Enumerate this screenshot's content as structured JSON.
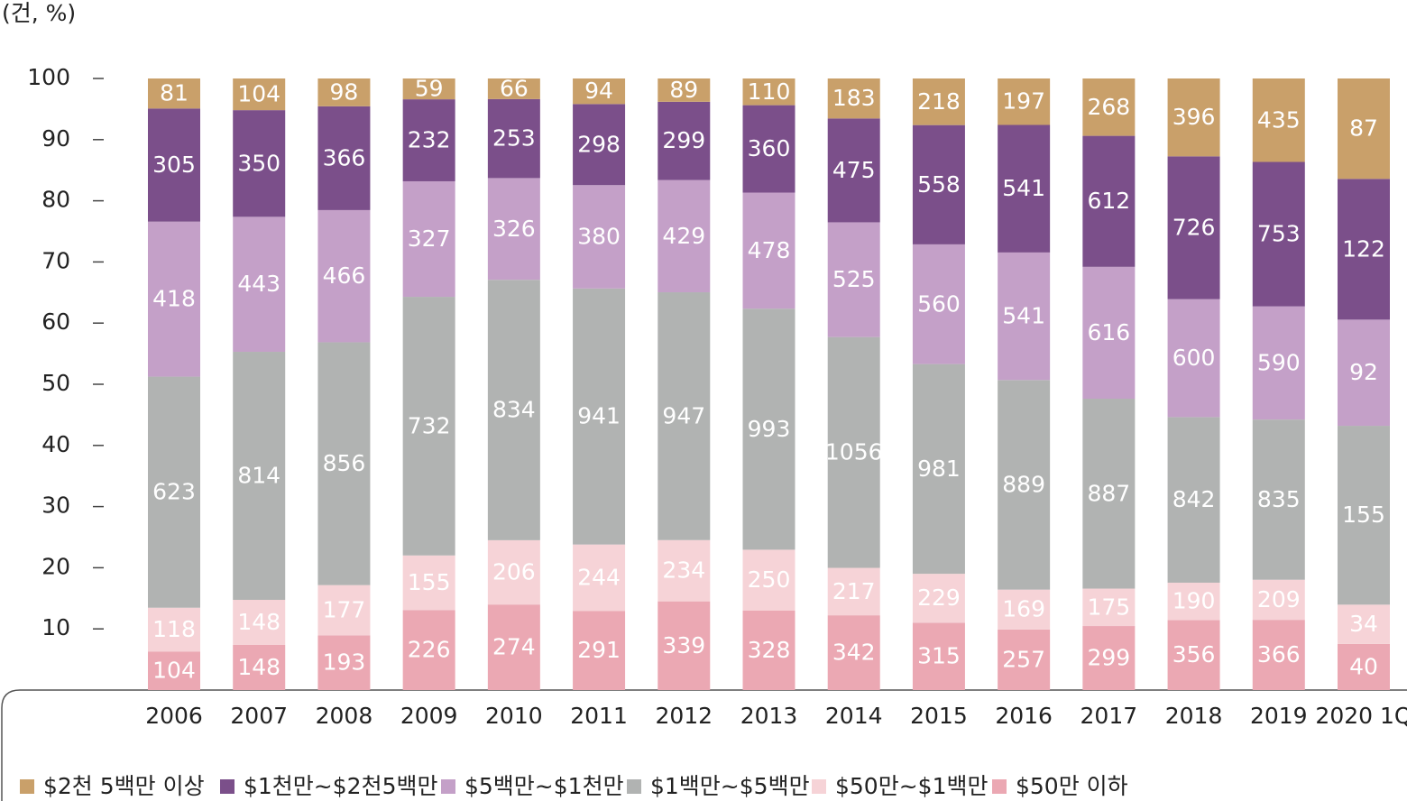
{
  "chart_data": {
    "type": "bar",
    "stacking": "percent",
    "y_label": "(건, %)",
    "categories": [
      "2006",
      "2007",
      "2008",
      "2009",
      "2010",
      "2011",
      "2012",
      "2013",
      "2014",
      "2015",
      "2016",
      "2017",
      "2018",
      "2019",
      "2020 1Q"
    ],
    "series": [
      {
        "name": "$2천 5백만 이상",
        "color": "#c9a06a",
        "values": [
          81,
          104,
          98,
          59,
          66,
          94,
          89,
          110,
          183,
          218,
          197,
          268,
          396,
          435,
          87
        ]
      },
      {
        "name": "$1천만~$2천5백만",
        "color": "#7b4f8a",
        "values": [
          305,
          350,
          366,
          232,
          253,
          298,
          299,
          360,
          475,
          558,
          541,
          612,
          726,
          753,
          122
        ]
      },
      {
        "name": "$5백만~$1천만",
        "color": "#c4a0c8",
        "values": [
          418,
          443,
          466,
          327,
          326,
          380,
          429,
          478,
          525,
          560,
          541,
          616,
          600,
          590,
          92
        ]
      },
      {
        "name": "$1백만~$5백만",
        "color": "#b1b3b2",
        "values": [
          623,
          814,
          856,
          732,
          834,
          941,
          947,
          993,
          1056,
          981,
          889,
          887,
          842,
          835,
          155
        ]
      },
      {
        "name": "$50만~$1백만",
        "color": "#f6d3d7",
        "values": [
          118,
          148,
          177,
          155,
          206,
          244,
          234,
          250,
          217,
          229,
          169,
          175,
          190,
          209,
          34
        ]
      },
      {
        "name": "$50만 이하",
        "color": "#eba8b3",
        "values": [
          104,
          148,
          193,
          226,
          274,
          291,
          339,
          328,
          342,
          315,
          257,
          299,
          356,
          366,
          40
        ]
      }
    ],
    "ylim": [
      0,
      100
    ],
    "yticks": [
      10,
      20,
      30,
      40,
      50,
      60,
      70,
      80,
      90,
      100
    ]
  }
}
